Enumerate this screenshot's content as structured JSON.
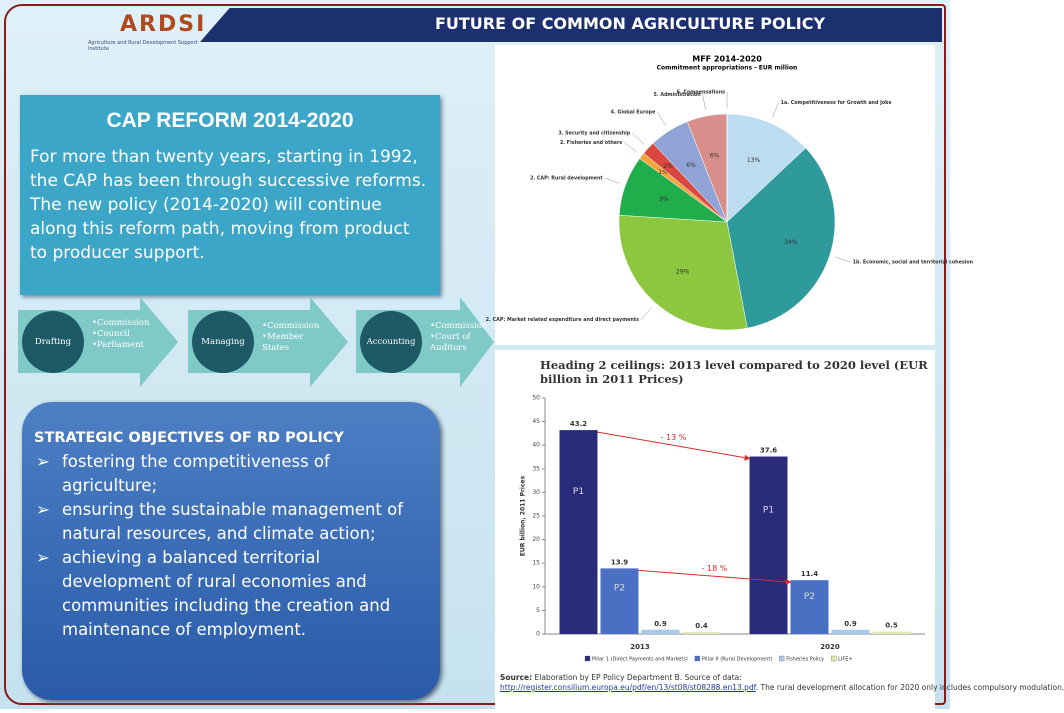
{
  "header": {
    "logo": "ARDSI",
    "logo_subtitle": "Agriculture and Rural Development Support Institute",
    "title": "FUTURE OF COMMON AGRICULTURE POLICY"
  },
  "cap_box": {
    "title": "CAP REFORM 2014-2020",
    "text": "For more than twenty years, starting in 1992, the CAP has been through successive reforms. The new policy (2014-2020) will continue along this reform path, moving from product to producer support."
  },
  "process": [
    {
      "label": "Drafting",
      "items": [
        "Commission",
        "Council",
        "Parliament"
      ]
    },
    {
      "label": "Managing",
      "items": [
        "Commission",
        "Member States"
      ]
    },
    {
      "label": "Accounting",
      "items": [
        "Commission",
        "Court of Auditors"
      ]
    }
  ],
  "objectives": {
    "title": "STRATEGIC OBJECTIVES OF RD POLICY",
    "items": [
      "fostering the competitiveness of agriculture;",
      "ensuring the sustainable management of natural resources, and climate action;",
      "achieving a balanced territorial development of rural economies and communities including the creation and maintenance of employment."
    ]
  },
  "chart_data": [
    {
      "type": "pie",
      "title": "MFF 2014-2020",
      "subtitle": "Commitment appropriations - EUR million",
      "categories": [
        "1a. Competitiveness for Growth and Jobs",
        "1b. Economic, social and territorial cohesion",
        "2. CAP: Market related expenditure and direct payments",
        "2. CAP: Rural development",
        "2. Fisheries and others",
        "3. Security and citizenship",
        "4. Global Europe",
        "5. Administration",
        "6. Compensations"
      ],
      "values": [
        13,
        34,
        29,
        9,
        1,
        2,
        6,
        6,
        0
      ],
      "value_labels": [
        "13%",
        "34%",
        "29%",
        "9%",
        "1%",
        "2%",
        "6%",
        "6%",
        null
      ],
      "colors": [
        "#bcdcf0",
        "#2f9a9c",
        "#8dc63f",
        "#1fae4b",
        "#f2a33a",
        "#d9473f",
        "#8fa3d6",
        "#d88f8c",
        "#cccccc"
      ]
    },
    {
      "type": "bar",
      "title": "Heading 2 ceilings: 2013 level compared to 2020 level (EUR billion in 2011 Prices)",
      "y_label": "EUR billion, 2011 Prices",
      "categories": [
        "2013",
        "2020"
      ],
      "series": [
        {
          "name": "Pillar 1 (Direct Payments and Markets)",
          "color": "#2b2b7c",
          "values": [
            43.2,
            37.6
          ],
          "inner_label": "P1"
        },
        {
          "name": "Pillar II (Rural Development)",
          "color": "#4a70c4",
          "values": [
            13.9,
            11.4
          ],
          "inner_label": "P2"
        },
        {
          "name": "Fisheries Policy",
          "color": "#a9c9e8",
          "values": [
            0.9,
            0.9
          ]
        },
        {
          "name": "LIFE+",
          "color": "#dbe9b4",
          "values": [
            0.4,
            0.5
          ]
        }
      ],
      "ylim": [
        0,
        50
      ],
      "yticks": [
        0,
        5,
        10,
        15,
        20,
        25,
        30,
        35,
        40,
        45,
        50
      ],
      "annotations": [
        "- 13 %",
        "- 18 %"
      ],
      "source_label": "Source:",
      "source_text": "Elaboration by EP Policy Department B.  Source of data:",
      "source_link": "http://register.consilium.europa.eu/pdf/en/13/st08/st08288.en13.pdf",
      "source_note": ". The rural development allocation for 2020 only includes compulsory modulation."
    }
  ]
}
